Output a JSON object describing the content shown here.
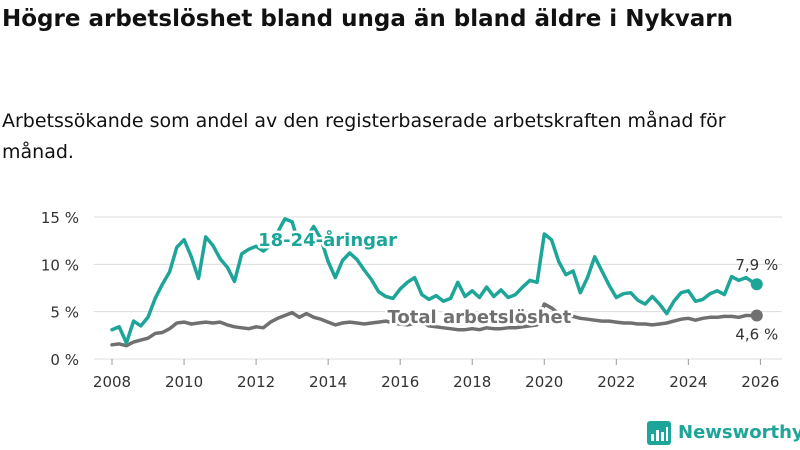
{
  "header": {
    "title": "Högre arbetslöshet bland unga än bland äldre i Nykvarn",
    "subtitle": "Arbetssökande som andel av den registerbaserade arbetskraften månad för månad."
  },
  "brand": {
    "name": "Newsworthy"
  },
  "colors": {
    "youth": "#1ea59a",
    "total": "#707070",
    "grid": "#dcdcdc",
    "text": "#333333"
  },
  "chart_data": {
    "type": "line",
    "title": "Högre arbetslöshet bland unga än bland äldre i Nykvarn",
    "xlabel": "",
    "ylabel": "",
    "xlim": [
      2007.5,
      2026.6
    ],
    "ylim": [
      0,
      15
    ],
    "grid": true,
    "x_ticks": [
      2008,
      2010,
      2012,
      2014,
      2016,
      2018,
      2020,
      2022,
      2024,
      2026
    ],
    "x_tick_labels": [
      "2008",
      "2010",
      "2012",
      "2014",
      "2016",
      "2018",
      "2020",
      "2022",
      "2024",
      "2026"
    ],
    "y_ticks": [
      0,
      5,
      10,
      15
    ],
    "y_tick_labels": [
      "0 %",
      "5 %",
      "10 %",
      "15 %"
    ],
    "series": [
      {
        "name": "18-24-åringar",
        "label": "18-24-åringar",
        "end_label": "7,9 %",
        "x": [
          2008.0,
          2008.2,
          2008.4,
          2008.6,
          2008.8,
          2009.0,
          2009.2,
          2009.4,
          2009.6,
          2009.8,
          2010.0,
          2010.2,
          2010.4,
          2010.6,
          2010.8,
          2011.0,
          2011.2,
          2011.4,
          2011.6,
          2011.8,
          2012.0,
          2012.2,
          2012.4,
          2012.6,
          2012.8,
          2013.0,
          2013.2,
          2013.4,
          2013.6,
          2013.8,
          2014.0,
          2014.2,
          2014.4,
          2014.6,
          2014.8,
          2015.0,
          2015.2,
          2015.4,
          2015.6,
          2015.8,
          2016.0,
          2016.2,
          2016.4,
          2016.6,
          2016.8,
          2017.0,
          2017.2,
          2017.4,
          2017.6,
          2017.8,
          2018.0,
          2018.2,
          2018.4,
          2018.6,
          2018.8,
          2019.0,
          2019.2,
          2019.4,
          2019.6,
          2019.8,
          2020.0,
          2020.2,
          2020.4,
          2020.6,
          2020.8,
          2021.0,
          2021.2,
          2021.4,
          2021.6,
          2021.8,
          2022.0,
          2022.2,
          2022.4,
          2022.6,
          2022.8,
          2023.0,
          2023.2,
          2023.4,
          2023.6,
          2023.8,
          2024.0,
          2024.2,
          2024.4,
          2024.6,
          2024.8,
          2025.0,
          2025.2,
          2025.4,
          2025.6,
          2025.8,
          2025.9
        ],
        "values": [
          3.1,
          3.4,
          1.7,
          4.0,
          3.5,
          4.4,
          6.4,
          7.9,
          9.2,
          11.8,
          12.6,
          10.8,
          8.5,
          12.9,
          12.0,
          10.6,
          9.7,
          8.2,
          11.1,
          11.6,
          11.9,
          11.4,
          12.0,
          13.4,
          14.8,
          14.5,
          12.0,
          12.8,
          14.0,
          12.7,
          10.3,
          8.6,
          10.4,
          11.2,
          10.5,
          9.4,
          8.4,
          7.1,
          6.6,
          6.4,
          7.4,
          8.1,
          8.6,
          6.8,
          6.3,
          6.7,
          6.1,
          6.4,
          8.1,
          6.6,
          7.2,
          6.5,
          7.6,
          6.6,
          7.3,
          6.5,
          6.8,
          7.6,
          8.3,
          8.1,
          13.2,
          12.6,
          10.3,
          8.9,
          9.3,
          7.0,
          8.6,
          10.8,
          9.3,
          7.8,
          6.5,
          6.9,
          7.0,
          6.2,
          5.8,
          6.6,
          5.8,
          4.8,
          6.1,
          7.0,
          7.2,
          6.1,
          6.3,
          6.9,
          7.2,
          6.8,
          8.7,
          8.3,
          8.6,
          8.1,
          7.9
        ]
      },
      {
        "name": "Total arbetslöshet",
        "label": "Total arbetslöshet",
        "end_label": "4,6 %",
        "x": [
          2008.0,
          2008.2,
          2008.4,
          2008.6,
          2008.8,
          2009.0,
          2009.2,
          2009.4,
          2009.6,
          2009.8,
          2010.0,
          2010.2,
          2010.4,
          2010.6,
          2010.8,
          2011.0,
          2011.2,
          2011.4,
          2011.6,
          2011.8,
          2012.0,
          2012.2,
          2012.4,
          2012.6,
          2012.8,
          2013.0,
          2013.2,
          2013.4,
          2013.6,
          2013.8,
          2014.0,
          2014.2,
          2014.4,
          2014.6,
          2014.8,
          2015.0,
          2015.2,
          2015.4,
          2015.6,
          2015.8,
          2016.0,
          2016.2,
          2016.4,
          2016.6,
          2016.8,
          2017.0,
          2017.2,
          2017.4,
          2017.6,
          2017.8,
          2018.0,
          2018.2,
          2018.4,
          2018.6,
          2018.8,
          2019.0,
          2019.2,
          2019.4,
          2019.6,
          2019.8,
          2020.0,
          2020.2,
          2020.4,
          2020.6,
          2020.8,
          2021.0,
          2021.2,
          2021.4,
          2021.6,
          2021.8,
          2022.0,
          2022.2,
          2022.4,
          2022.6,
          2022.8,
          2023.0,
          2023.2,
          2023.4,
          2023.6,
          2023.8,
          2024.0,
          2024.2,
          2024.4,
          2024.6,
          2024.8,
          2025.0,
          2025.2,
          2025.4,
          2025.6,
          2025.8,
          2025.9
        ],
        "values": [
          1.5,
          1.6,
          1.4,
          1.8,
          2.0,
          2.2,
          2.7,
          2.8,
          3.2,
          3.8,
          3.9,
          3.7,
          3.8,
          3.9,
          3.8,
          3.9,
          3.6,
          3.4,
          3.3,
          3.2,
          3.4,
          3.3,
          3.9,
          4.3,
          4.6,
          4.9,
          4.4,
          4.8,
          4.4,
          4.2,
          3.9,
          3.6,
          3.8,
          3.9,
          3.8,
          3.7,
          3.8,
          3.9,
          4.0,
          3.8,
          3.7,
          3.6,
          3.8,
          3.9,
          3.5,
          3.4,
          3.3,
          3.2,
          3.1,
          3.1,
          3.2,
          3.1,
          3.3,
          3.2,
          3.2,
          3.3,
          3.3,
          3.4,
          3.5,
          3.6,
          5.8,
          5.4,
          4.8,
          4.6,
          4.5,
          4.3,
          4.2,
          4.1,
          4.0,
          4.0,
          3.9,
          3.8,
          3.8,
          3.7,
          3.7,
          3.6,
          3.7,
          3.8,
          4.0,
          4.2,
          4.3,
          4.1,
          4.3,
          4.4,
          4.4,
          4.5,
          4.5,
          4.4,
          4.6,
          4.6,
          4.6
        ]
      }
    ]
  }
}
